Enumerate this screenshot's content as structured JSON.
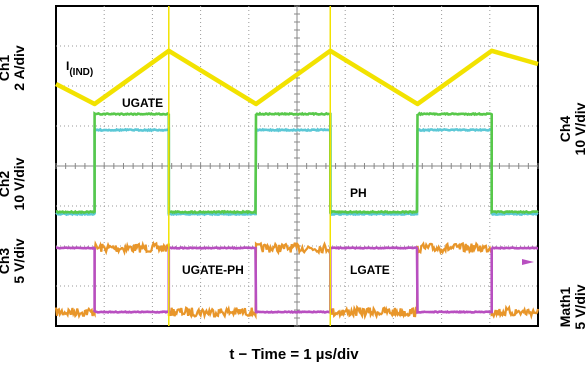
{
  "chart_data": {
    "type": "line",
    "title": "",
    "xlabel": "t − Time = 1 µs/div",
    "x_divisions": 10,
    "y_divisions": 8,
    "channel_scales": [
      {
        "name": "Ch1",
        "scale": "2 A/div"
      },
      {
        "name": "Ch2",
        "scale": "10 V/div"
      },
      {
        "name": "Ch3",
        "scale": "5 V/div"
      },
      {
        "name": "Ch4",
        "scale": "10 V/div"
      },
      {
        "name": "Math1",
        "scale": "5 V/div"
      }
    ],
    "switching_period_div": 3.35,
    "series": [
      {
        "name": "I(IND)",
        "label_main": "I",
        "label_sub": "(IND)",
        "color": "#f2e200",
        "shape": "triangle",
        "x": [
          0,
          0.8,
          2.34,
          4.15,
          5.69,
          7.5,
          9.04,
          10
        ],
        "y": [
          6.05,
          5.55,
          6.88,
          5.55,
          6.88,
          5.55,
          6.88,
          6.55
        ]
      },
      {
        "name": "UGATE",
        "color": "#58c84a",
        "shape": "square",
        "low": 2.85,
        "high": 5.3,
        "rise": [
          0.8,
          4.15,
          7.5
        ],
        "fall": [
          2.34,
          5.69,
          9.04
        ]
      },
      {
        "name": "Ch4",
        "color": "#5cc8d6",
        "shape": "square",
        "low": 2.8,
        "high": 4.9,
        "rise": [
          0.8,
          4.15,
          7.5
        ],
        "fall": [
          2.34,
          5.69,
          9.04
        ]
      },
      {
        "name": "PH",
        "color": "#5cc8d6",
        "shape": "hidden",
        "low": 2.8,
        "high": 4.9
      },
      {
        "name": "UGATE-PH",
        "color": "#e8962a",
        "shape": "square-noisy",
        "low": 0.35,
        "high": 1.95,
        "rise": [
          0.8,
          4.15,
          7.5
        ],
        "fall": [
          2.34,
          5.69,
          9.04
        ]
      },
      {
        "name": "LGATE",
        "color": "#b84fc0",
        "shape": "square",
        "low": 0.35,
        "high": 1.95,
        "rise": [
          2.34,
          5.69,
          9.04
        ],
        "fall": [
          0.8,
          4.15,
          7.5
        ]
      }
    ],
    "grid": true
  }
}
